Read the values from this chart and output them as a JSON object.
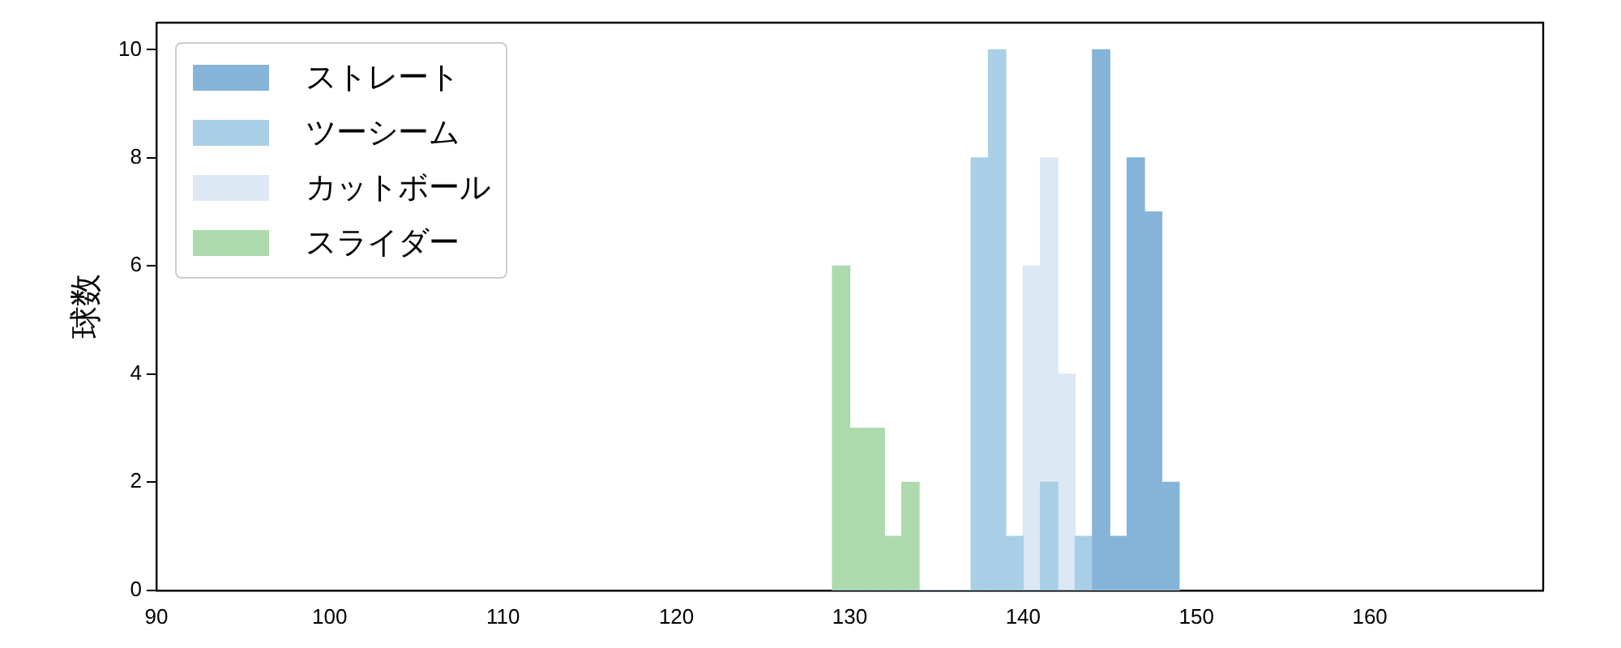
{
  "chart_data": {
    "type": "histogram",
    "ylabel": "球数",
    "bins": [
      129,
      130,
      131,
      132,
      133,
      134,
      135,
      136,
      137,
      138,
      139,
      140,
      141,
      142,
      143,
      144,
      145,
      146,
      147,
      148,
      149
    ],
    "series": [
      {
        "name": "ストレート",
        "color": "#86b4d8",
        "values": [
          0,
          0,
          0,
          0,
          0,
          0,
          0,
          0,
          0,
          0,
          0,
          0,
          0,
          0,
          0,
          10,
          1,
          8,
          7,
          2
        ]
      },
      {
        "name": "ツーシーム",
        "color": "#a9cfe7",
        "values": [
          0,
          0,
          0,
          0,
          0,
          0,
          0,
          0,
          8,
          10,
          1,
          0,
          2,
          0,
          1,
          0,
          0,
          0,
          0,
          0
        ]
      },
      {
        "name": "カットボール",
        "color": "#dce8f4",
        "values": [
          0,
          0,
          0,
          0,
          0,
          0,
          0,
          0,
          0,
          0,
          0,
          6,
          8,
          4,
          0,
          0,
          0,
          0,
          0,
          0
        ]
      },
      {
        "name": "スライダー",
        "color": "#acdaac",
        "values": [
          6,
          3,
          3,
          1,
          2,
          0,
          0,
          0,
          0,
          0,
          0,
          0,
          0,
          0,
          0,
          0,
          0,
          0,
          0,
          0
        ]
      }
    ],
    "xlim": [
      90,
      170
    ],
    "xticks": [
      90,
      100,
      110,
      120,
      130,
      140,
      150,
      160
    ],
    "ylim": [
      0,
      10.5
    ],
    "yticks": [
      0,
      2,
      4,
      6,
      8,
      10
    ],
    "grid": false,
    "legend": "top left"
  }
}
